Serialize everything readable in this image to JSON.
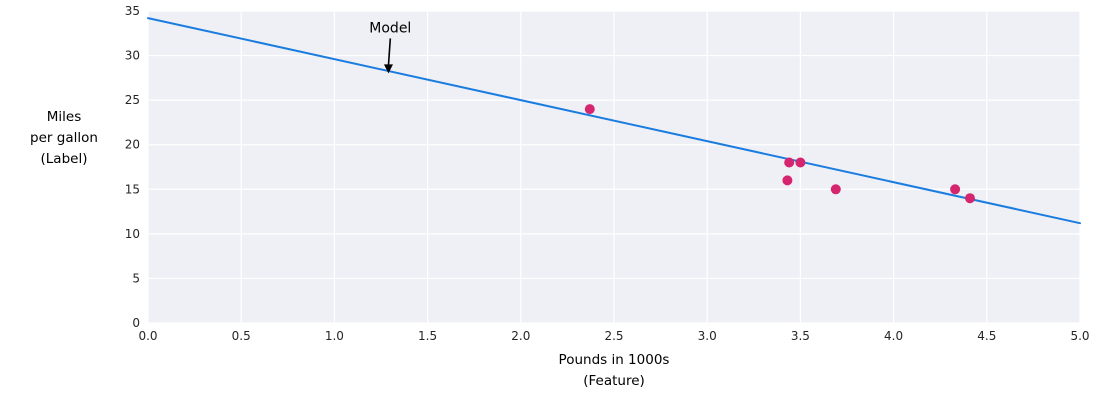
{
  "chart_data": {
    "type": "scatter",
    "title": "",
    "xlabel_lines": [
      "Pounds in 1000s",
      "(Feature)"
    ],
    "ylabel_lines": [
      "Miles",
      "per gallon",
      "(Label)"
    ],
    "xlim": [
      0.0,
      5.0
    ],
    "ylim": [
      0,
      35
    ],
    "xtick_values": [
      0.0,
      0.5,
      1.0,
      1.5,
      2.0,
      2.5,
      3.0,
      3.5,
      4.0,
      4.5,
      5.0
    ],
    "xtick_labels": [
      "0.0",
      "0.5",
      "1.0",
      "1.5",
      "2.0",
      "2.5",
      "3.0",
      "3.5",
      "4.0",
      "4.5",
      "5.0"
    ],
    "ytick_values": [
      0,
      5,
      10,
      15,
      20,
      25,
      30,
      35
    ],
    "ytick_labels": [
      "0",
      "5",
      "10",
      "15",
      "20",
      "25",
      "30",
      "35"
    ],
    "grid": true,
    "legend": "none",
    "series": [
      {
        "name": "model-line",
        "kind": "line",
        "color": "#1b7ce0",
        "points": [
          {
            "x": 0.0,
            "y": 34.2
          },
          {
            "x": 5.0,
            "y": 11.2
          }
        ]
      },
      {
        "name": "training-data",
        "kind": "scatter",
        "color": "#d5256e",
        "points": [
          {
            "x": 2.37,
            "y": 24
          },
          {
            "x": 3.43,
            "y": 16
          },
          {
            "x": 3.44,
            "y": 18
          },
          {
            "x": 3.5,
            "y": 18
          },
          {
            "x": 3.69,
            "y": 15
          },
          {
            "x": 4.33,
            "y": 15
          },
          {
            "x": 4.41,
            "y": 14
          }
        ]
      }
    ],
    "annotation": {
      "text": "Model",
      "text_xy": {
        "x": 1.3,
        "y": 32.6
      },
      "arrow_tip_xy": {
        "x": 1.29,
        "y": 28.0
      },
      "color": "#000000"
    },
    "colors": {
      "plot_background": "#eef0f6",
      "figure_background": "#ffffff",
      "grid": "#ffffff",
      "tick_label": "#262626",
      "axis_label": "#000000"
    }
  }
}
